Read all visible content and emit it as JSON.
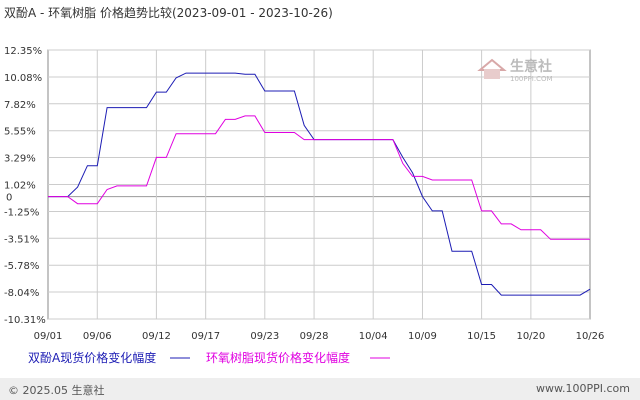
{
  "title": "双酚A - 环氧树脂 价格趋势比较(2023-09-01 - 2023-10-26)",
  "watermark": {
    "name": "生意社",
    "url": "100PPI.COM"
  },
  "footer": {
    "copyright": "© 2025.05 生意社",
    "site": "www.100PPI.com"
  },
  "colors": {
    "series1": "#1c1cb4",
    "series2": "#e000e0",
    "grid": "#cccccc",
    "zero": "#999999"
  },
  "chart_data": {
    "type": "line",
    "x_ticks": [
      "09/01",
      "09/06",
      "09/12",
      "09/17",
      "09/23",
      "09/28",
      "10/04",
      "10/09",
      "10/15",
      "10/20",
      "10/26"
    ],
    "y_ticks": [
      "12.35%",
      "10.08%",
      "7.82%",
      "5.55%",
      "3.29%",
      "1.02%",
      "0",
      "-1.25%",
      "-3.51%",
      "-5.78%",
      "-8.04%",
      "-10.31%"
    ],
    "ylim": [
      -10.31,
      12.35
    ],
    "grid": true,
    "legend_position": "bottom",
    "series": [
      {
        "name": "双酚A现货价格变化幅度",
        "points": [
          [
            "09/01",
            0
          ],
          [
            "09/03",
            0
          ],
          [
            "09/04",
            0.8
          ],
          [
            "09/05",
            2.6
          ],
          [
            "09/06",
            2.6
          ],
          [
            "09/07",
            7.5
          ],
          [
            "09/11",
            7.5
          ],
          [
            "09/12",
            8.8
          ],
          [
            "09/13",
            8.8
          ],
          [
            "09/14",
            10.0
          ],
          [
            "09/15",
            10.4
          ],
          [
            "09/20",
            10.4
          ],
          [
            "09/21",
            10.3
          ],
          [
            "09/22",
            10.3
          ],
          [
            "09/23",
            8.9
          ],
          [
            "09/26",
            8.9
          ],
          [
            "09/27",
            6.0
          ],
          [
            "09/28",
            4.8
          ],
          [
            "10/06",
            4.8
          ],
          [
            "10/07",
            3.3
          ],
          [
            "10/08",
            2.0
          ],
          [
            "10/09",
            0
          ],
          [
            "10/10",
            -1.2
          ],
          [
            "10/11",
            -1.2
          ],
          [
            "10/12",
            -4.6
          ],
          [
            "10/14",
            -4.6
          ],
          [
            "10/15",
            -7.4
          ],
          [
            "10/16",
            -7.4
          ],
          [
            "10/17",
            -8.3
          ],
          [
            "10/25",
            -8.3
          ],
          [
            "10/26",
            -7.8
          ]
        ]
      },
      {
        "name": "环氧树脂现货价格变化幅度",
        "points": [
          [
            "09/01",
            0
          ],
          [
            "09/03",
            0
          ],
          [
            "09/04",
            -0.6
          ],
          [
            "09/06",
            -0.6
          ],
          [
            "09/07",
            0.6
          ],
          [
            "09/08",
            0.9
          ],
          [
            "09/11",
            0.9
          ],
          [
            "09/12",
            3.3
          ],
          [
            "09/13",
            3.3
          ],
          [
            "09/14",
            5.3
          ],
          [
            "09/18",
            5.3
          ],
          [
            "09/19",
            6.5
          ],
          [
            "09/20",
            6.5
          ],
          [
            "09/21",
            6.8
          ],
          [
            "09/22",
            6.8
          ],
          [
            "09/23",
            5.4
          ],
          [
            "09/26",
            5.4
          ],
          [
            "09/27",
            4.8
          ],
          [
            "10/06",
            4.8
          ],
          [
            "10/07",
            2.8
          ],
          [
            "10/08",
            1.7
          ],
          [
            "10/09",
            1.7
          ],
          [
            "10/10",
            1.4
          ],
          [
            "10/14",
            1.4
          ],
          [
            "10/15",
            -1.2
          ],
          [
            "10/16",
            -1.2
          ],
          [
            "10/17",
            -2.3
          ],
          [
            "10/18",
            -2.3
          ],
          [
            "10/19",
            -2.8
          ],
          [
            "10/21",
            -2.8
          ],
          [
            "10/22",
            -3.6
          ],
          [
            "10/26",
            -3.6
          ]
        ]
      }
    ]
  }
}
